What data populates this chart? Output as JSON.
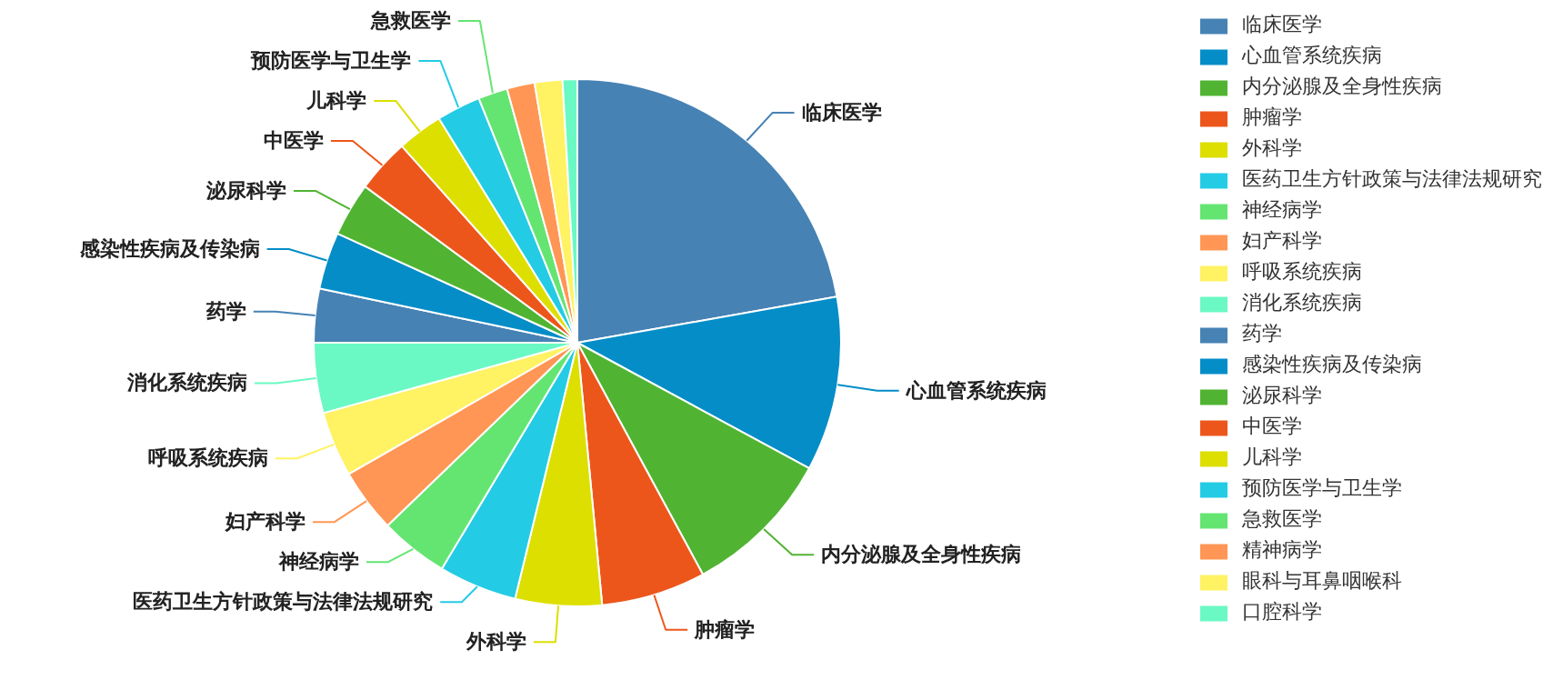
{
  "chart_data": {
    "type": "pie",
    "categories": [
      "临床医学",
      "心血管系统疾病",
      "内分泌腺及全身性疾病",
      "肿瘤学",
      "外科学",
      "医药卫生方针政策与法律法规研究",
      "神经病学",
      "妇产科学",
      "呼吸系统疾病",
      "消化系统疾病",
      "药学",
      "感染性疾病及传染病",
      "泌尿科学",
      "中医学",
      "儿科学",
      "预防医学与卫生学",
      "急救医学",
      "精神病学",
      "眼科与耳鼻咽喉科",
      "口腔科学"
    ],
    "values": [
      22.2,
      10.7,
      9.2,
      6.4,
      5.3,
      4.8,
      4.2,
      3.9,
      4.0,
      4.3,
      3.3,
      3.5,
      3.3,
      3.3,
      2.8,
      2.7,
      1.8,
      1.7,
      1.7,
      0.9
    ],
    "colors": [
      "#4682b4",
      "#058dc7",
      "#50b432",
      "#ed561b",
      "#dddf00",
      "#24cbe5",
      "#64e572",
      "#ff9655",
      "#fff263",
      "#6af9c4",
      "#4682b4",
      "#058dc7",
      "#50b432",
      "#ed561b",
      "#dddf00",
      "#24cbe5",
      "#64e572",
      "#ff9655",
      "#fff263",
      "#6af9c4"
    ],
    "legend": "right"
  }
}
